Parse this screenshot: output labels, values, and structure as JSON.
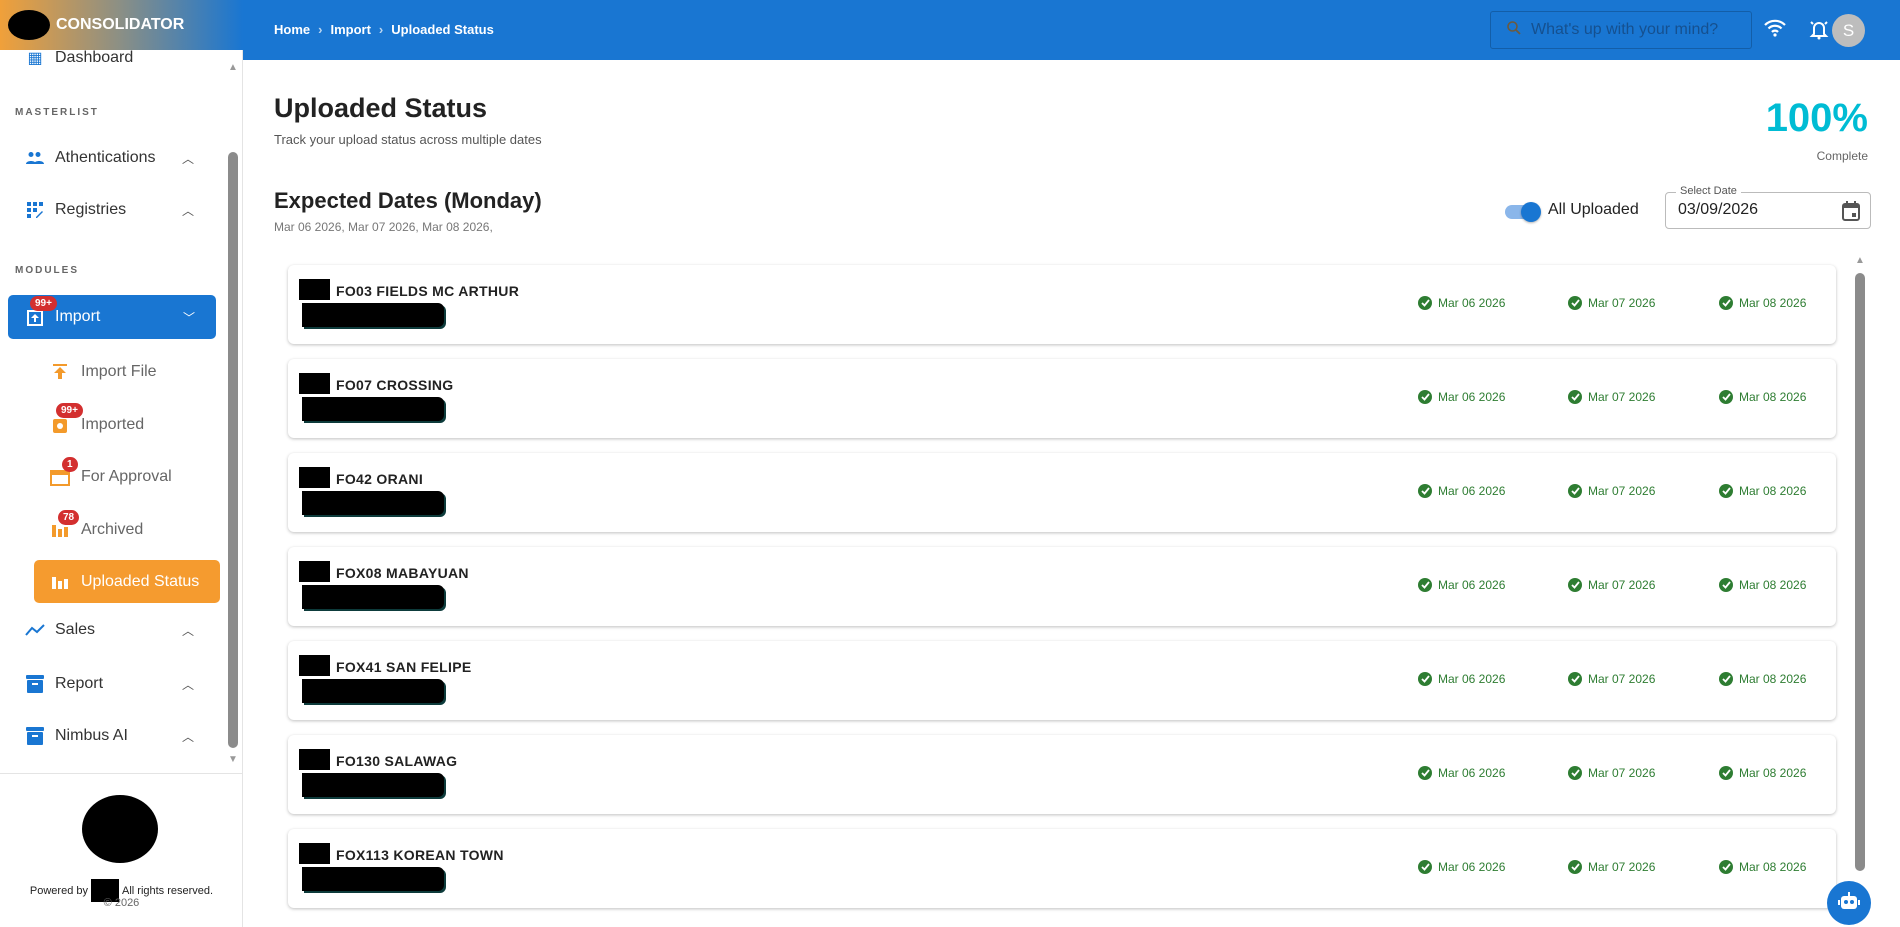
{
  "app": {
    "name": "CONSOLIDATOR"
  },
  "header": {
    "breadcrumb": [
      "Home",
      "Import",
      "Uploaded Status"
    ],
    "search_placeholder": "What's up with your mind?",
    "avatar_initial": "S"
  },
  "sidebar": {
    "partial_item": "Dashboard",
    "sections": [
      "MASTERLIST",
      "MODULES"
    ],
    "masterlist": [
      {
        "label": "Athentications",
        "icon": "people-icon"
      },
      {
        "label": "Registries",
        "icon": "grid-edit-icon"
      }
    ],
    "import": {
      "label": "Import",
      "badge": "99+"
    },
    "import_children": [
      {
        "label": "Import File",
        "badge": ""
      },
      {
        "label": "Imported",
        "badge": "99+"
      },
      {
        "label": "For Approval",
        "badge": "1"
      },
      {
        "label": "Archived",
        "badge": "78"
      },
      {
        "label": "Uploaded Status",
        "badge": ""
      }
    ],
    "modules": [
      {
        "label": "Sales"
      },
      {
        "label": "Report"
      },
      {
        "label": "Nimbus AI"
      }
    ],
    "footer": {
      "powered_prefix": "Powered by",
      "powered_suffix": "All rights reserved.",
      "copyright": "© 2026"
    }
  },
  "main": {
    "title": "Uploaded Status",
    "subtitle": "Track your upload status across multiple dates",
    "progress": {
      "value": "100%",
      "label": "Complete",
      "percent": 100
    },
    "expected_title": "Expected Dates (Monday)",
    "expected_dates": "Mar 06 2026, Mar 07 2026, Mar 08 2026,",
    "toggle": {
      "label": "All Uploaded",
      "on": true
    },
    "date_field": {
      "label": "Select Date",
      "value": "03/09/2026"
    },
    "branches": [
      {
        "name": "FO03 FIELDS MC ARTHUR",
        "dates": [
          "Mar 06 2026",
          "Mar 07 2026",
          "Mar 08 2026"
        ]
      },
      {
        "name": "FO07 CROSSING",
        "dates": [
          "Mar 06 2026",
          "Mar 07 2026",
          "Mar 08 2026"
        ]
      },
      {
        "name": "FO42 ORANI",
        "dates": [
          "Mar 06 2026",
          "Mar 07 2026",
          "Mar 08 2026"
        ]
      },
      {
        "name": "FOX08 MABAYUAN",
        "dates": [
          "Mar 06 2026",
          "Mar 07 2026",
          "Mar 08 2026"
        ]
      },
      {
        "name": "FOX41 SAN FELIPE",
        "dates": [
          "Mar 06 2026",
          "Mar 07 2026",
          "Mar 08 2026"
        ]
      },
      {
        "name": "FO130 SALAWAG",
        "dates": [
          "Mar 06 2026",
          "Mar 07 2026",
          "Mar 08 2026"
        ]
      },
      {
        "name": "FOX113 KOREAN TOWN",
        "dates": [
          "Mar 06 2026",
          "Mar 07 2026",
          "Mar 08 2026"
        ]
      }
    ]
  },
  "colors": {
    "primary": "#1976d2",
    "accent": "#f59b2f",
    "progress": "#00bcd4",
    "success": "#2e7d32",
    "badge": "#d32f2f"
  }
}
